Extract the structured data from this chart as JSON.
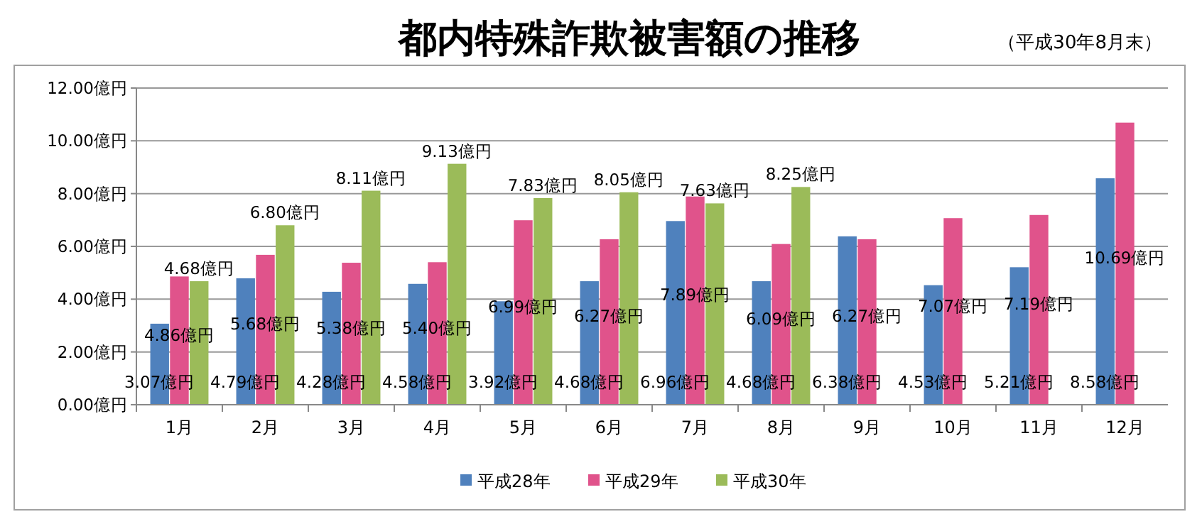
{
  "chart_data": {
    "type": "bar",
    "title": "都内特殊詐欺被害額の推移",
    "subtitle": "（平成30年8月末）",
    "categories": [
      "1月",
      "2月",
      "3月",
      "4月",
      "5月",
      "6月",
      "7月",
      "8月",
      "9月",
      "10月",
      "11月",
      "12月"
    ],
    "series": [
      {
        "name": "平成28年",
        "color": "#4f81bd",
        "values": [
          3.07,
          4.79,
          4.28,
          4.58,
          3.92,
          4.68,
          6.96,
          4.68,
          6.38,
          4.53,
          5.21,
          8.58
        ],
        "value_labels": [
          "3.07億円",
          "4.79億円",
          "4.28億円",
          "4.58億円",
          "3.92億円",
          "4.68億円",
          "6.96億円",
          "4.68億円",
          "6.38億円",
          "4.53億円",
          "5.21億円",
          "8.58億円"
        ]
      },
      {
        "name": "平成29年",
        "color": "#e0538b",
        "values": [
          4.86,
          5.68,
          5.38,
          5.4,
          6.99,
          6.27,
          7.89,
          6.09,
          6.27,
          7.07,
          7.19,
          10.69
        ],
        "value_labels": [
          "4.86億円",
          "5.68億円",
          "5.38億円",
          "5.40億円",
          "6.99億円",
          "6.27億円",
          "7.89億円",
          "6.09億円",
          "6.27億円",
          "7.07億円",
          "7.19億円",
          "10.69億円"
        ]
      },
      {
        "name": "平成30年",
        "color": "#9bbb59",
        "values": [
          4.68,
          6.8,
          8.11,
          9.13,
          7.83,
          8.05,
          7.63,
          8.25,
          null,
          null,
          null,
          null
        ],
        "value_labels": [
          "4.68億円",
          "6.80億円",
          "8.11億円",
          "9.13億円",
          "7.83億円",
          "8.05億円",
          "7.63億円",
          "8.25億円",
          null,
          null,
          null,
          null
        ]
      }
    ],
    "ylim": [
      0,
      12
    ],
    "yticks": [
      {
        "value": 0,
        "label": "0.00億円"
      },
      {
        "value": 2,
        "label": "2.00億円"
      },
      {
        "value": 4,
        "label": "4.00億円"
      },
      {
        "value": 6,
        "label": "6.00億円"
      },
      {
        "value": 8,
        "label": "8.00億円"
      },
      {
        "value": 10,
        "label": "10.00億円"
      },
      {
        "value": 12,
        "label": "12.00億円"
      }
    ],
    "grid": "y",
    "legend": "bottom"
  }
}
